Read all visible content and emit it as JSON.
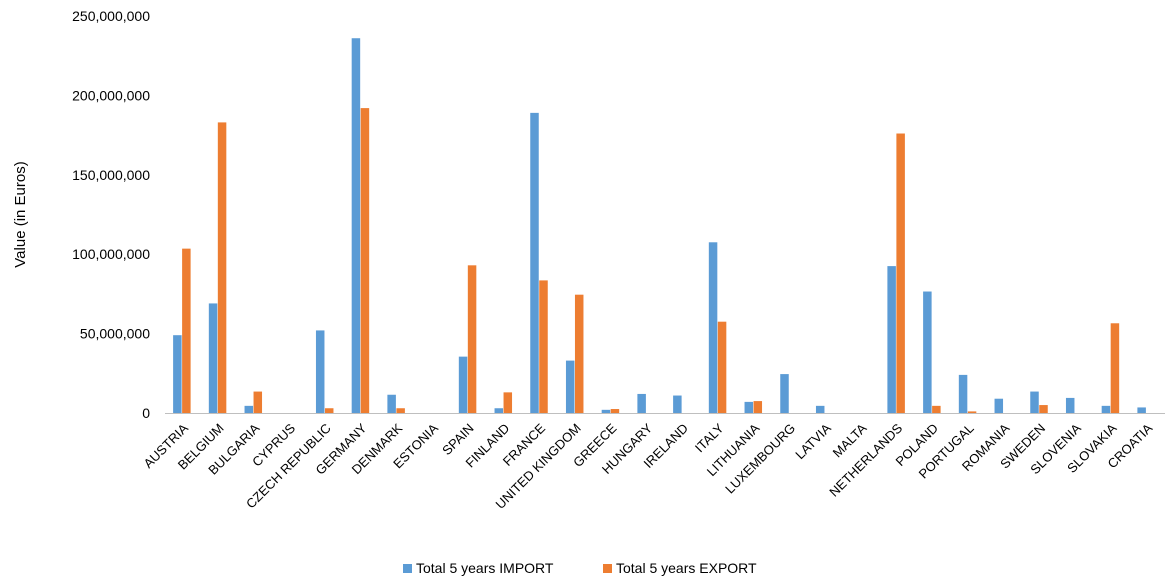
{
  "chart_data": {
    "type": "bar",
    "title": "",
    "xlabel": "",
    "ylabel": "Value (in Euros)",
    "ylim": [
      0,
      250000000
    ],
    "yticks": [
      0,
      50000000,
      100000000,
      150000000,
      200000000,
      250000000
    ],
    "ytick_labels": [
      "0",
      "50,000,000",
      "100,000,000",
      "150,000,000",
      "200,000,000",
      "250,000,000"
    ],
    "grid": false,
    "legend_position": "bottom",
    "categories": [
      "AUSTRIA",
      "BELGIUM",
      "BULGARIA",
      "CYPRUS",
      "CZECH REPUBLIC",
      "GERMANY",
      "DENMARK",
      "ESTONIA",
      "SPAIN",
      "FINLAND",
      "FRANCE",
      "UNITED KINGDOM",
      "GREECE",
      "HUNGARY",
      "IRELAND",
      "ITALY",
      "LITHUANIA",
      "LUXEMBOURG",
      "LATVIA",
      "MALTA",
      "NETHERLANDS",
      "POLAND",
      "PORTUGAL",
      "ROMANIA",
      "SWEDEN",
      "SLOVENIA",
      "SLOVAKIA",
      "CROATIA"
    ],
    "series": [
      {
        "name": "Total 5 years IMPORT",
        "color": "#5B9BD5",
        "values": [
          49000000,
          69000000,
          4500000,
          0,
          52000000,
          236000000,
          11500000,
          0,
          35500000,
          3000000,
          189000000,
          33000000,
          2000000,
          12000000,
          11000000,
          107500000,
          7000000,
          24500000,
          4500000,
          0,
          92500000,
          76500000,
          24000000,
          9000000,
          13500000,
          9500000,
          4500000,
          3500000
        ]
      },
      {
        "name": "Total 5 years EXPORT",
        "color": "#ED7D31",
        "values": [
          103500000,
          183000000,
          13500000,
          0,
          3000000,
          192000000,
          3000000,
          0,
          93000000,
          13000000,
          83500000,
          74500000,
          2500000,
          0,
          0,
          57500000,
          7500000,
          0,
          0,
          0,
          176000000,
          4500000,
          1000000,
          0,
          5000000,
          0,
          56500000,
          0
        ]
      }
    ]
  }
}
